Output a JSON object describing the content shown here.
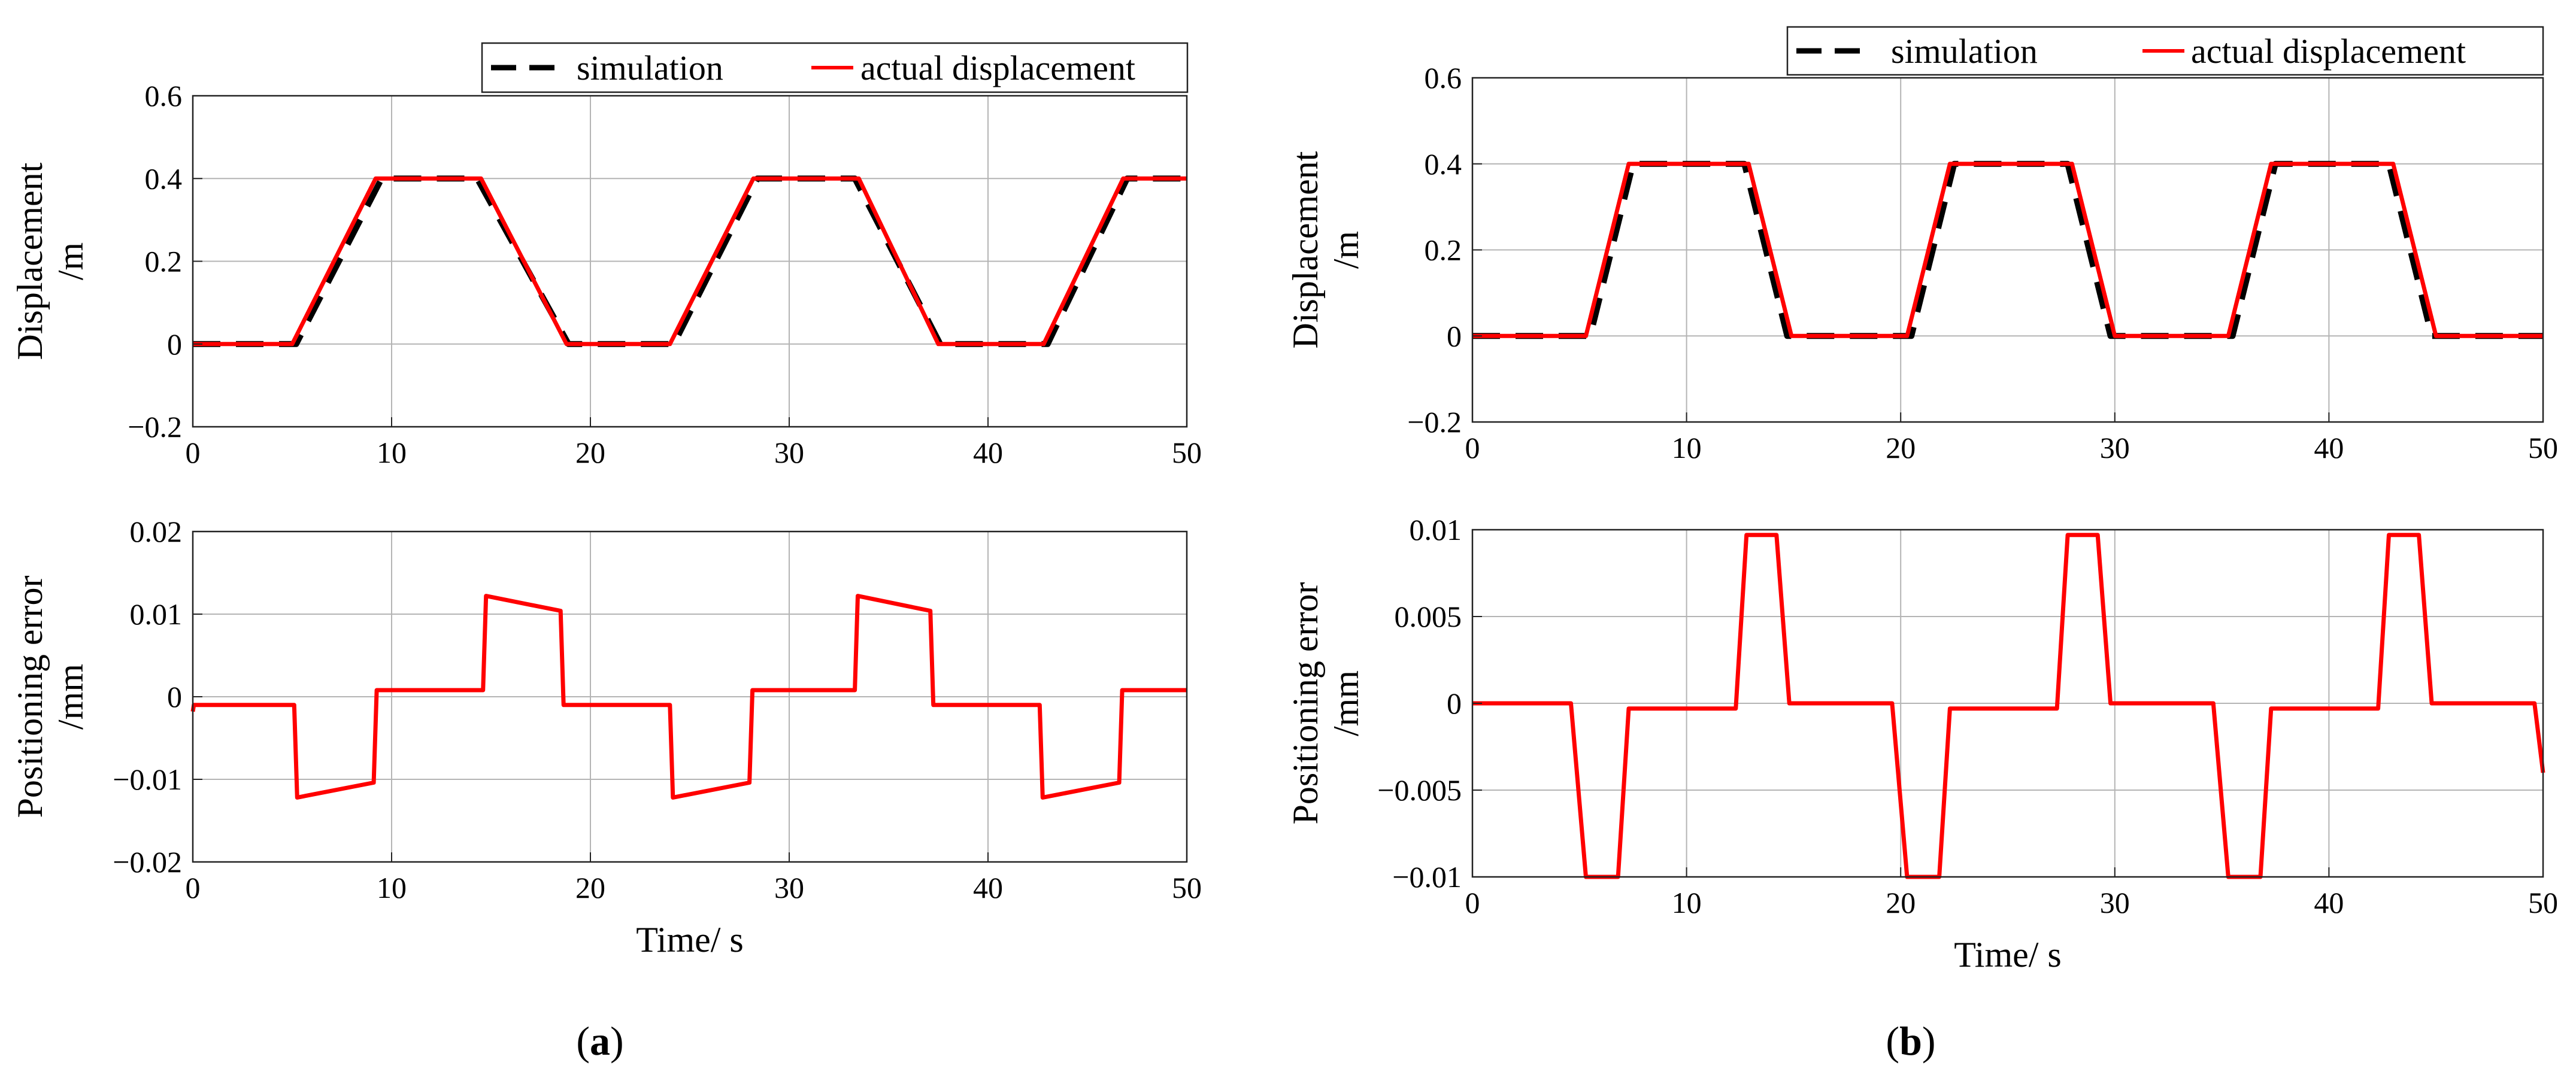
{
  "colors": {
    "simulation": "#000000",
    "actual": "#ff0000",
    "grid": "#b4b4b4",
    "axis": "#222222"
  },
  "chart_data": [
    {
      "id": "a-top",
      "panel": "a",
      "type": "line",
      "title": "",
      "xlabel": "",
      "ylabel": [
        "Displacement",
        "/m"
      ],
      "xlim": [
        0,
        50
      ],
      "ylim": [
        -0.2,
        0.6
      ],
      "xticks": [
        "0",
        "10",
        "20",
        "30",
        "40",
        "50"
      ],
      "xtick_values": [
        0,
        10,
        20,
        30,
        40,
        50
      ],
      "yticks": [
        "−0.2",
        "0",
        "0.2",
        "0.4",
        "0.6"
      ],
      "ytick_values": [
        -0.2,
        0,
        0.2,
        0.4,
        0.6
      ],
      "grid": true,
      "legend": {
        "placement": "top-right, above axes",
        "entries": [
          "simulation",
          "actual displacement"
        ]
      },
      "series": [
        {
          "name": "simulation",
          "style": "dashed",
          "color": "#000000",
          "x": [
            0,
            5.2,
            9.5,
            14.3,
            18.9,
            24.2,
            28.4,
            33.3,
            37.6,
            43,
            47,
            50
          ],
          "y": [
            0,
            0,
            0.4,
            0.4,
            0,
            0,
            0.4,
            0.4,
            0,
            0,
            0.4,
            0.4
          ]
        },
        {
          "name": "actual displacement",
          "style": "solid",
          "color": "#ff0000",
          "x": [
            0,
            5,
            9.2,
            14.5,
            18.8,
            24,
            28.2,
            33.5,
            37.5,
            42.8,
            46.8,
            50
          ],
          "y": [
            0,
            0,
            0.4,
            0.4,
            0,
            0,
            0.4,
            0.4,
            0,
            0,
            0.4,
            0.4
          ]
        }
      ]
    },
    {
      "id": "a-bottom",
      "panel": "a",
      "type": "line",
      "title": "",
      "xlabel": "Time/ s",
      "ylabel": [
        "Positioning error",
        "/mm"
      ],
      "xlim": [
        0,
        50
      ],
      "ylim": [
        -0.02,
        0.02
      ],
      "xticks": [
        "0",
        "10",
        "20",
        "30",
        "40",
        "50"
      ],
      "xtick_values": [
        0,
        10,
        20,
        30,
        40,
        50
      ],
      "yticks": [
        "−0.02",
        "−0.01",
        "0",
        "0.01",
        "0.02"
      ],
      "ytick_values": [
        -0.02,
        -0.01,
        0,
        0.01,
        0.02
      ],
      "grid": true,
      "series": [
        {
          "name": "actual displacement",
          "style": "solid",
          "color": "#ff0000",
          "x": [
            0,
            0.05,
            5.1,
            5.25,
            9.1,
            9.25,
            14.6,
            14.75,
            18.5,
            18.65,
            24,
            24.15,
            28,
            28.15,
            33.3,
            33.45,
            37.1,
            37.25,
            42.6,
            42.75,
            46.6,
            46.75,
            50
          ],
          "y": [
            -0.0018,
            -0.001,
            -0.001,
            -0.0122,
            -0.0104,
            0.0008,
            0.0008,
            0.0122,
            0.0104,
            -0.001,
            -0.001,
            -0.0122,
            -0.0104,
            0.0008,
            0.0008,
            0.0122,
            0.0104,
            -0.001,
            -0.001,
            -0.0122,
            -0.0104,
            0.0008,
            0.0008
          ]
        }
      ]
    },
    {
      "id": "b-top",
      "panel": "b",
      "type": "line",
      "title": "",
      "xlabel": "",
      "ylabel": [
        "Displacement",
        "/m"
      ],
      "xlim": [
        0,
        50
      ],
      "ylim": [
        -0.2,
        0.6
      ],
      "xticks": [
        "0",
        "10",
        "20",
        "30",
        "40",
        "50"
      ],
      "xtick_values": [
        0,
        10,
        20,
        30,
        40,
        50
      ],
      "yticks": [
        "−0.2",
        "0",
        "0.2",
        "0.4",
        "0.6"
      ],
      "ytick_values": [
        -0.2,
        0,
        0.2,
        0.4,
        0.6
      ],
      "grid": true,
      "legend": {
        "placement": "top-right, above axes",
        "entries": [
          "simulation",
          "actual displacement"
        ]
      },
      "series": [
        {
          "name": "simulation",
          "style": "dashed",
          "color": "#000000",
          "x": [
            0,
            5.5,
            7.5,
            12.7,
            14.7,
            20.5,
            22.5,
            27.8,
            29.8,
            35.5,
            37.5,
            42.8,
            44.8,
            50
          ],
          "y": [
            0,
            0,
            0.4,
            0.4,
            0,
            0,
            0.4,
            0.4,
            0,
            0,
            0.4,
            0.4,
            0,
            0
          ]
        },
        {
          "name": "actual displacement",
          "style": "solid",
          "color": "#ff0000",
          "x": [
            0,
            5.3,
            7.3,
            12.9,
            14.9,
            20.3,
            22.3,
            28,
            30,
            35.3,
            37.3,
            43,
            45,
            50
          ],
          "y": [
            0,
            0,
            0.4,
            0.4,
            0,
            0,
            0.4,
            0.4,
            0,
            0,
            0.4,
            0.4,
            0,
            0
          ]
        }
      ]
    },
    {
      "id": "b-bottom",
      "panel": "b",
      "type": "line",
      "title": "",
      "xlabel": "Time/ s",
      "ylabel": [
        "Positioning error",
        "/mm"
      ],
      "xlim": [
        0,
        50
      ],
      "ylim": [
        -0.01,
        0.01
      ],
      "xticks": [
        "0",
        "10",
        "20",
        "30",
        "40",
        "50"
      ],
      "xtick_values": [
        0,
        10,
        20,
        30,
        40,
        50
      ],
      "yticks": [
        "−0.01",
        "−0.005",
        "0",
        "0.005",
        "0.01"
      ],
      "ytick_values": [
        -0.01,
        -0.005,
        0,
        0.005,
        0.01
      ],
      "grid": true,
      "series": [
        {
          "name": "actual displacement",
          "style": "solid",
          "color": "#ff0000",
          "x": [
            0,
            4.6,
            5.3,
            6.8,
            7.3,
            12.3,
            12.8,
            14.2,
            14.8,
            19.6,
            20.3,
            21.8,
            22.3,
            27.3,
            27.8,
            29.2,
            29.8,
            34.6,
            35.3,
            36.8,
            37.3,
            42.3,
            42.8,
            44.2,
            44.8,
            49.6,
            50
          ],
          "y": [
            0,
            0,
            -0.01,
            -0.01,
            -0.0003,
            -0.0003,
            0.0097,
            0.0097,
            0,
            0,
            -0.01,
            -0.01,
            -0.0003,
            -0.0003,
            0.0097,
            0.0097,
            0,
            0,
            -0.01,
            -0.01,
            -0.0003,
            -0.0003,
            0.0097,
            0.0097,
            0,
            0,
            -0.004
          ]
        }
      ]
    }
  ],
  "captions": [
    {
      "panel": "a",
      "letter": "a"
    },
    {
      "panel": "b",
      "letter": "b"
    }
  ]
}
